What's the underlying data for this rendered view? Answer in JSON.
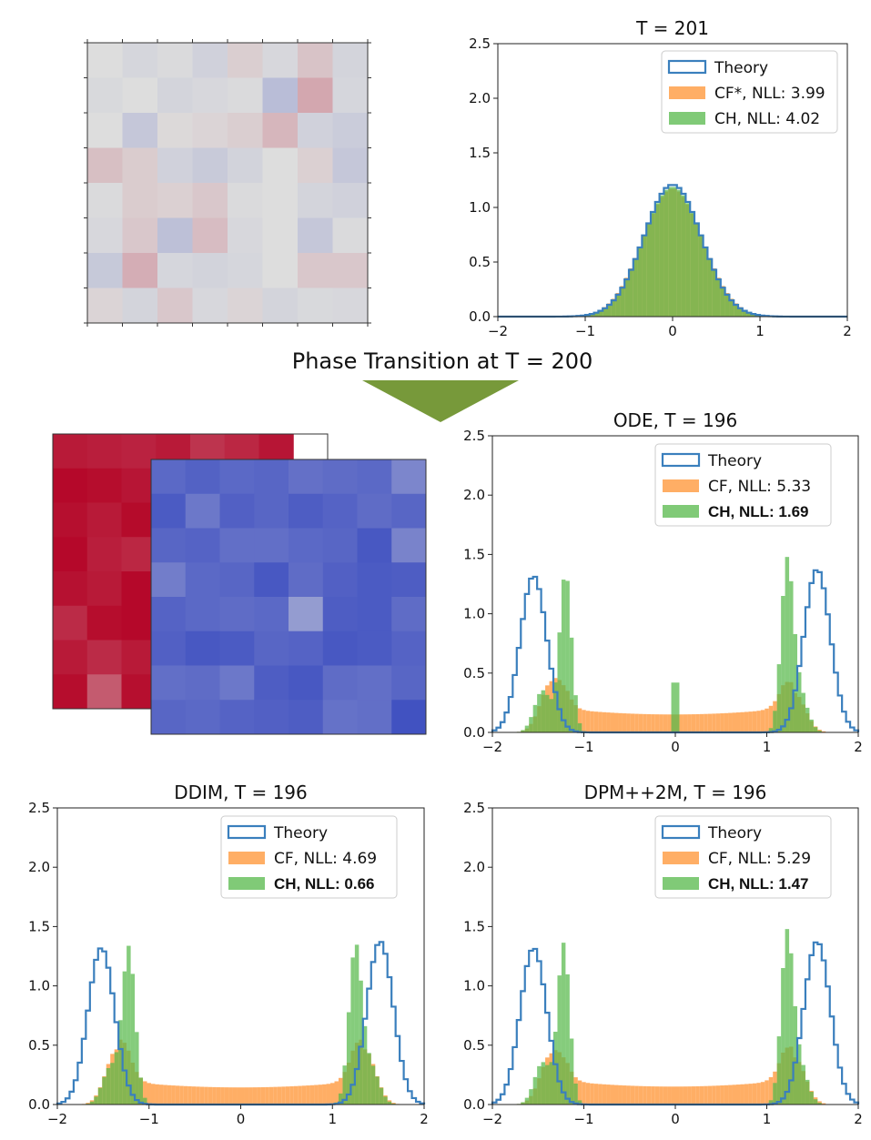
{
  "phase_transition_label": "Phase Transition at T = 200",
  "colors": {
    "theory": "#3a7fbd",
    "cf": "#ffa04a",
    "ch": "#56b84a",
    "arrow": "#77993a",
    "heat_neutral": "#dcdcdc"
  },
  "heatmaps": {
    "pre": [
      [
        0.0,
        -0.05,
        -0.02,
        -0.08,
        0.07,
        -0.04,
        0.12,
        -0.06
      ],
      [
        -0.03,
        0.0,
        -0.06,
        -0.04,
        -0.02,
        -0.22,
        0.25,
        -0.05
      ],
      [
        0.0,
        -0.15,
        0.02,
        0.04,
        0.07,
        0.18,
        -0.08,
        -0.12
      ],
      [
        0.14,
        0.08,
        -0.08,
        -0.13,
        -0.07,
        0.0,
        0.06,
        -0.15
      ],
      [
        -0.02,
        0.08,
        0.06,
        0.1,
        -0.02,
        0.0,
        -0.06,
        -0.08
      ],
      [
        -0.04,
        0.1,
        -0.2,
        0.15,
        -0.04,
        0.0,
        -0.15,
        -0.02
      ],
      [
        -0.14,
        0.22,
        -0.05,
        -0.07,
        -0.05,
        0.0,
        0.1,
        0.1
      ],
      [
        0.04,
        -0.06,
        0.1,
        -0.04,
        0.04,
        -0.06,
        -0.03,
        -0.04
      ]
    ],
    "post_red": [
      [
        0.9,
        0.88,
        0.86,
        0.9,
        0.78,
        0.84,
        0.92
      ],
      [
        0.98,
        0.96,
        0.92
      ],
      [
        0.95,
        0.9,
        0.97
      ],
      [
        0.98,
        0.88,
        0.84
      ],
      [
        0.94,
        0.9,
        0.98
      ],
      [
        0.82,
        0.96,
        0.98
      ],
      [
        0.9,
        0.82,
        0.9
      ],
      [
        0.96,
        0.6,
        0.95
      ]
    ],
    "post_blue": [
      [
        -0.8,
        -0.85,
        -0.8,
        -0.82,
        -0.75,
        -0.78,
        -0.8,
        -0.6
      ],
      [
        -0.9,
        -0.7,
        -0.86,
        -0.82,
        -0.88,
        -0.84,
        -0.78,
        -0.82
      ],
      [
        -0.82,
        -0.84,
        -0.76,
        -0.76,
        -0.8,
        -0.82,
        -0.92,
        -0.62
      ],
      [
        -0.66,
        -0.8,
        -0.82,
        -0.92,
        -0.78,
        -0.86,
        -0.9,
        -0.88
      ],
      [
        -0.84,
        -0.8,
        -0.78,
        -0.8,
        -0.45,
        -0.88,
        -0.9,
        -0.78
      ],
      [
        -0.86,
        -0.92,
        -0.9,
        -0.82,
        -0.84,
        -0.92,
        -0.9,
        -0.84
      ],
      [
        -0.76,
        -0.78,
        -0.7,
        -0.88,
        -0.92,
        -0.78,
        -0.76,
        -0.82
      ],
      [
        -0.82,
        -0.8,
        -0.84,
        -0.86,
        -0.88,
        -0.74,
        -0.76,
        -0.96
      ]
    ]
  },
  "chart_data": [
    {
      "id": "t201",
      "type": "histogram",
      "title": "T = 201",
      "xlim": [
        -2,
        2
      ],
      "ylim": [
        0,
        2.5
      ],
      "xticks": [
        -2,
        -1,
        0,
        1,
        2
      ],
      "yticks": [
        0.0,
        0.5,
        1.0,
        1.5,
        2.0,
        2.5
      ],
      "xtick_labels": [
        "−2",
        "−1",
        "0",
        "1",
        "2"
      ],
      "ytick_labels": [
        "0.0",
        "0.5",
        "1.0",
        "1.5",
        "2.0",
        "2.5"
      ],
      "legend": [
        {
          "label": "Theory",
          "kind": "step",
          "bold": false
        },
        {
          "label": "CF*, NLL: 3.99",
          "kind": "cf",
          "bold": false
        },
        {
          "label": "CH, NLL: 4.02",
          "kind": "ch",
          "bold": false
        }
      ],
      "series": [
        {
          "name": "Theory",
          "kind": "gauss",
          "components": [
            {
              "mu": 0,
              "sigma": 0.33,
              "w": 1
            }
          ]
        },
        {
          "name": "CF*",
          "kind": "gauss",
          "components": [
            {
              "mu": 0,
              "sigma": 0.34,
              "w": 1
            }
          ]
        },
        {
          "name": "CH",
          "kind": "gauss",
          "components": [
            {
              "mu": 0,
              "sigma": 0.335,
              "w": 1
            }
          ]
        }
      ]
    },
    {
      "id": "ode",
      "type": "histogram",
      "title": "ODE, T = 196",
      "xlim": [
        -2,
        2
      ],
      "ylim": [
        0,
        2.5
      ],
      "xticks": [
        -2,
        -1,
        0,
        1,
        2
      ],
      "yticks": [
        0.0,
        0.5,
        1.0,
        1.5,
        2.0,
        2.5
      ],
      "xtick_labels": [
        "−2",
        "−1",
        "0",
        "1",
        "2"
      ],
      "ytick_labels": [
        "0.0",
        "0.5",
        "1.0",
        "1.5",
        "2.0",
        "2.5"
      ],
      "legend": [
        {
          "label": "Theory",
          "kind": "step",
          "bold": false
        },
        {
          "label": "CF, NLL: 5.33",
          "kind": "cf",
          "bold": false
        },
        {
          "label": "CH, NLL: 1.69",
          "kind": "ch",
          "bold": true
        }
      ],
      "series": [
        {
          "name": "Theory",
          "kind": "gauss",
          "components": [
            {
              "mu": -1.55,
              "sigma": 0.145,
              "w": 0.48
            },
            {
              "mu": 1.55,
              "sigma": 0.145,
              "w": 0.5
            }
          ]
        },
        {
          "name": "CF",
          "kind": "cf_mix",
          "components": [
            {
              "mu": -1.35,
              "sigma": 0.12,
              "w": 0.13
            },
            {
              "mu": 1.3,
              "sigma": 0.12,
              "w": 0.1
            }
          ],
          "plateau": 0.21
        },
        {
          "name": "CH",
          "kind": "ch_mix",
          "components": [
            {
              "mu": -1.2,
              "sigma": 0.065,
              "w": 0.22
            },
            {
              "mu": 1.22,
              "sigma": 0.065,
              "w": 0.22
            },
            {
              "mu": -1.45,
              "sigma": 0.09,
              "w": 0.08
            },
            {
              "mu": 1.35,
              "sigma": 0.09,
              "w": 0.08
            }
          ],
          "spike": {
            "x": 0,
            "h": 0.42
          }
        }
      ]
    },
    {
      "id": "ddim",
      "type": "histogram",
      "title": "DDIM, T = 196",
      "xlim": [
        -2,
        2
      ],
      "ylim": [
        0,
        2.5
      ],
      "xticks": [
        -2,
        -1,
        0,
        1,
        2
      ],
      "yticks": [
        0.0,
        0.5,
        1.0,
        1.5,
        2.0,
        2.5
      ],
      "xtick_labels": [
        "−2",
        "−1",
        "0",
        "1",
        "2"
      ],
      "ytick_labels": [
        "0.0",
        "0.5",
        "1.0",
        "1.5",
        "2.0",
        "2.5"
      ],
      "legend": [
        {
          "label": "Theory",
          "kind": "step",
          "bold": false
        },
        {
          "label": "CF, NLL: 4.69",
          "kind": "cf",
          "bold": false
        },
        {
          "label": "CH, NLL: 0.66",
          "kind": "ch",
          "bold": true
        }
      ],
      "series": [
        {
          "name": "Theory",
          "kind": "gauss",
          "components": [
            {
              "mu": -1.52,
              "sigma": 0.145,
              "w": 0.48
            },
            {
              "mu": 1.52,
              "sigma": 0.145,
              "w": 0.5
            }
          ]
        },
        {
          "name": "CF",
          "kind": "cf_mix",
          "components": [
            {
              "mu": -1.35,
              "sigma": 0.12,
              "w": 0.14
            },
            {
              "mu": 1.35,
              "sigma": 0.12,
              "w": 0.14
            }
          ],
          "plateau": 0.2
        },
        {
          "name": "CH",
          "kind": "ch_mix",
          "components": [
            {
              "mu": -1.22,
              "sigma": 0.07,
              "w": 0.23
            },
            {
              "mu": 1.25,
              "sigma": 0.07,
              "w": 0.23
            },
            {
              "mu": -1.42,
              "sigma": 0.09,
              "w": 0.07
            },
            {
              "mu": 1.42,
              "sigma": 0.09,
              "w": 0.07
            }
          ]
        }
      ]
    },
    {
      "id": "dpm",
      "type": "histogram",
      "title": "DPM++2M, T = 196",
      "xlim": [
        -2,
        2
      ],
      "ylim": [
        0,
        2.5
      ],
      "xticks": [
        -2,
        -1,
        0,
        1,
        2
      ],
      "yticks": [
        0.0,
        0.5,
        1.0,
        1.5,
        2.0,
        2.5
      ],
      "xtick_labels": [
        "−2",
        "−1",
        "0",
        "1",
        "2"
      ],
      "ytick_labels": [
        "0.0",
        "0.5",
        "1.0",
        "1.5",
        "2.0",
        "2.5"
      ],
      "legend": [
        {
          "label": "Theory",
          "kind": "step",
          "bold": false
        },
        {
          "label": "CF, NLL: 5.29",
          "kind": "cf",
          "bold": false
        },
        {
          "label": "CH, NLL: 1.47",
          "kind": "ch",
          "bold": true
        }
      ],
      "series": [
        {
          "name": "Theory",
          "kind": "gauss",
          "components": [
            {
              "mu": -1.55,
              "sigma": 0.145,
              "w": 0.48
            },
            {
              "mu": 1.55,
              "sigma": 0.145,
              "w": 0.5
            }
          ]
        },
        {
          "name": "CF",
          "kind": "cf_mix",
          "components": [
            {
              "mu": -1.35,
              "sigma": 0.12,
              "w": 0.13
            },
            {
              "mu": 1.3,
              "sigma": 0.12,
              "w": 0.12
            }
          ],
          "plateau": 0.21
        },
        {
          "name": "CH",
          "kind": "ch_mix",
          "components": [
            {
              "mu": -1.22,
              "sigma": 0.065,
              "w": 0.22
            },
            {
              "mu": 1.22,
              "sigma": 0.065,
              "w": 0.22
            },
            {
              "mu": -1.45,
              "sigma": 0.09,
              "w": 0.08
            },
            {
              "mu": 1.35,
              "sigma": 0.09,
              "w": 0.08
            }
          ]
        }
      ]
    }
  ]
}
